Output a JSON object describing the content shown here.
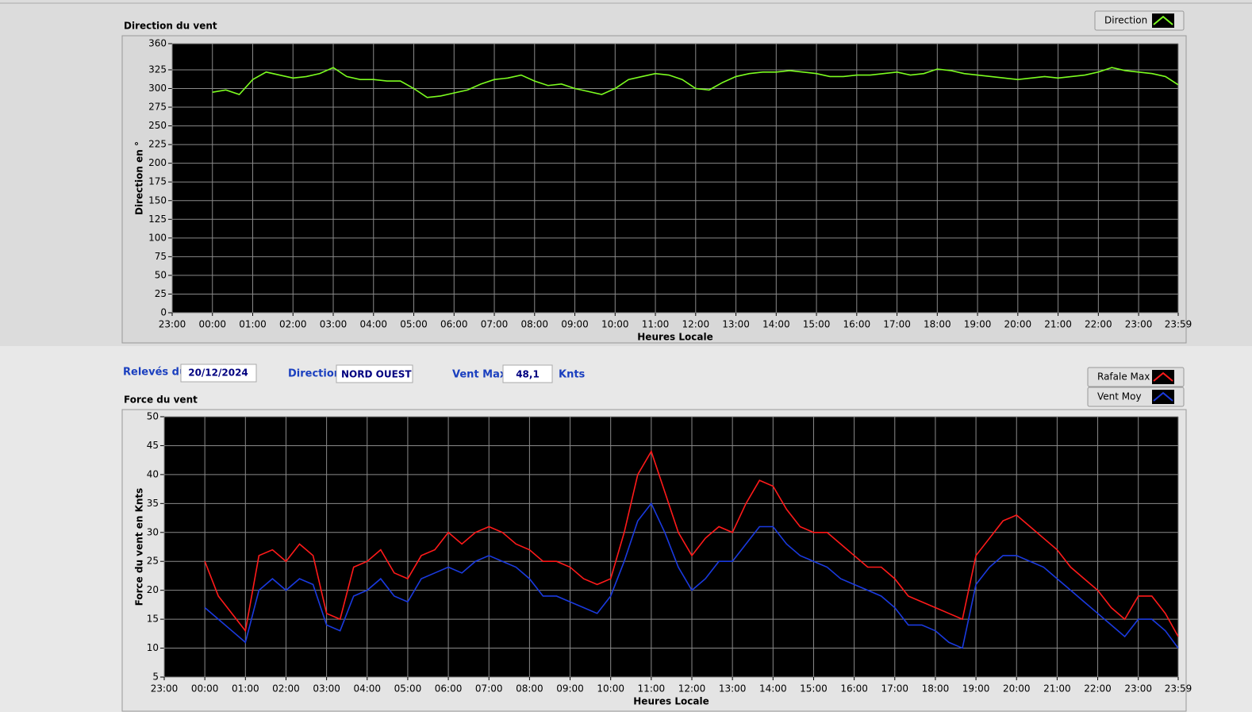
{
  "chart_data": [
    {
      "type": "line",
      "title": "Direction du vent",
      "xlabel": "Heures Locale",
      "ylabel": "Direction en °",
      "x": [
        0,
        20,
        40,
        60,
        80,
        100,
        120,
        140,
        160,
        180,
        200,
        220,
        240,
        260,
        280,
        300,
        320,
        340,
        360,
        380,
        400,
        420,
        440,
        460,
        480,
        500,
        520,
        540,
        560,
        580,
        600,
        620,
        640,
        660,
        680,
        700,
        720,
        740,
        760,
        780,
        800,
        820,
        840,
        860,
        880,
        900,
        920,
        940,
        960,
        980,
        1000,
        1020,
        1040,
        1060,
        1080,
        1100,
        1120,
        1140,
        1160,
        1180,
        1200,
        1220,
        1240,
        1260,
        1280,
        1300,
        1320,
        1340,
        1360,
        1380,
        1400,
        1420,
        1439
      ],
      "series": [
        {
          "name": "Direction",
          "color": "#7cfc20",
          "values": [
            295,
            298,
            292,
            312,
            322,
            318,
            314,
            316,
            320,
            328,
            316,
            312,
            312,
            310,
            310,
            300,
            288,
            290,
            294,
            298,
            306,
            312,
            314,
            318,
            310,
            304,
            306,
            300,
            296,
            292,
            300,
            312,
            316,
            320,
            318,
            312,
            300,
            298,
            308,
            316,
            320,
            322,
            322,
            324,
            322,
            320,
            316,
            316,
            318,
            318,
            320,
            322,
            318,
            320,
            326,
            324,
            320,
            318,
            316,
            314,
            312,
            314,
            316,
            314,
            316,
            318,
            322,
            328,
            324,
            322,
            320,
            316,
            305
          ]
        }
      ],
      "xlim": [
        -60,
        1439
      ],
      "xticks": [
        {
          "value": -60,
          "label": "23:00"
        },
        {
          "value": 0,
          "label": "00:00"
        },
        {
          "value": 60,
          "label": "01:00"
        },
        {
          "value": 120,
          "label": "02:00"
        },
        {
          "value": 180,
          "label": "03:00"
        },
        {
          "value": 240,
          "label": "04:00"
        },
        {
          "value": 300,
          "label": "05:00"
        },
        {
          "value": 360,
          "label": "06:00"
        },
        {
          "value": 420,
          "label": "07:00"
        },
        {
          "value": 480,
          "label": "08:00"
        },
        {
          "value": 540,
          "label": "09:00"
        },
        {
          "value": 600,
          "label": "10:00"
        },
        {
          "value": 660,
          "label": "11:00"
        },
        {
          "value": 720,
          "label": "12:00"
        },
        {
          "value": 780,
          "label": "13:00"
        },
        {
          "value": 840,
          "label": "14:00"
        },
        {
          "value": 900,
          "label": "15:00"
        },
        {
          "value": 960,
          "label": "16:00"
        },
        {
          "value": 1020,
          "label": "17:00"
        },
        {
          "value": 1080,
          "label": "18:00"
        },
        {
          "value": 1140,
          "label": "19:00"
        },
        {
          "value": 1200,
          "label": "20:00"
        },
        {
          "value": 1260,
          "label": "21:00"
        },
        {
          "value": 1320,
          "label": "22:00"
        },
        {
          "value": 1380,
          "label": "23:00"
        },
        {
          "value": 1439,
          "label": "23:59"
        }
      ],
      "ylim": [
        0,
        360
      ],
      "yticks": [
        0,
        25,
        50,
        75,
        100,
        125,
        150,
        175,
        200,
        225,
        250,
        275,
        300,
        325,
        360
      ],
      "grid": true
    },
    {
      "type": "line",
      "title": "Force du vent",
      "xlabel": "Heures Locale",
      "ylabel": "Force du vent en Knts",
      "x": [
        0,
        20,
        40,
        60,
        80,
        100,
        120,
        140,
        160,
        180,
        200,
        220,
        240,
        260,
        280,
        300,
        320,
        340,
        360,
        380,
        400,
        420,
        440,
        460,
        480,
        500,
        520,
        540,
        560,
        580,
        600,
        620,
        640,
        660,
        680,
        700,
        720,
        740,
        760,
        780,
        800,
        820,
        840,
        860,
        880,
        900,
        920,
        940,
        960,
        980,
        1000,
        1020,
        1040,
        1060,
        1080,
        1100,
        1120,
        1140,
        1160,
        1180,
        1200,
        1220,
        1240,
        1260,
        1280,
        1300,
        1320,
        1340,
        1360,
        1380,
        1400,
        1420,
        1439
      ],
      "series": [
        {
          "name": "Rafale Max",
          "color": "#ff1a1a",
          "values": [
            25,
            19,
            16,
            13,
            26,
            27,
            25,
            28,
            26,
            16,
            15,
            24,
            25,
            27,
            23,
            22,
            26,
            27,
            30,
            28,
            30,
            31,
            30,
            28,
            27,
            25,
            25,
            24,
            22,
            21,
            22,
            30,
            40,
            44,
            37,
            30,
            26,
            29,
            31,
            30,
            35,
            39,
            38,
            34,
            31,
            30,
            30,
            28,
            26,
            24,
            24,
            22,
            19,
            18,
            17,
            16,
            15,
            26,
            29,
            32,
            33,
            31,
            29,
            27,
            24,
            22,
            20,
            17,
            15,
            19,
            19,
            16,
            12
          ]
        },
        {
          "name": "Vent Moy",
          "color": "#1a3adf",
          "values": [
            17,
            15,
            13,
            11,
            20,
            22,
            20,
            22,
            21,
            14,
            13,
            19,
            20,
            22,
            19,
            18,
            22,
            23,
            24,
            23,
            25,
            26,
            25,
            24,
            22,
            19,
            19,
            18,
            17,
            16,
            19,
            25,
            32,
            35,
            30,
            24,
            20,
            22,
            25,
            25,
            28,
            31,
            31,
            28,
            26,
            25,
            24,
            22,
            21,
            20,
            19,
            17,
            14,
            14,
            13,
            11,
            10,
            21,
            24,
            26,
            26,
            25,
            24,
            22,
            20,
            18,
            16,
            14,
            12,
            15,
            15,
            13,
            10
          ]
        }
      ],
      "xlim": [
        -60,
        1439
      ],
      "xticks": [
        {
          "value": -60,
          "label": "23:00"
        },
        {
          "value": 0,
          "label": "00:00"
        },
        {
          "value": 60,
          "label": "01:00"
        },
        {
          "value": 120,
          "label": "02:00"
        },
        {
          "value": 180,
          "label": "03:00"
        },
        {
          "value": 240,
          "label": "04:00"
        },
        {
          "value": 300,
          "label": "05:00"
        },
        {
          "value": 360,
          "label": "06:00"
        },
        {
          "value": 420,
          "label": "07:00"
        },
        {
          "value": 480,
          "label": "08:00"
        },
        {
          "value": 540,
          "label": "09:00"
        },
        {
          "value": 600,
          "label": "10:00"
        },
        {
          "value": 660,
          "label": "11:00"
        },
        {
          "value": 720,
          "label": "12:00"
        },
        {
          "value": 780,
          "label": "13:00"
        },
        {
          "value": 840,
          "label": "14:00"
        },
        {
          "value": 900,
          "label": "15:00"
        },
        {
          "value": 960,
          "label": "16:00"
        },
        {
          "value": 1020,
          "label": "17:00"
        },
        {
          "value": 1080,
          "label": "18:00"
        },
        {
          "value": 1140,
          "label": "19:00"
        },
        {
          "value": 1200,
          "label": "20:00"
        },
        {
          "value": 1260,
          "label": "21:00"
        },
        {
          "value": 1320,
          "label": "22:00"
        },
        {
          "value": 1380,
          "label": "23:00"
        },
        {
          "value": 1439,
          "label": "23:59"
        }
      ],
      "ylim": [
        5,
        50
      ],
      "yticks": [
        5,
        10,
        15,
        20,
        25,
        30,
        35,
        40,
        45,
        50
      ],
      "grid": true
    }
  ],
  "form": {
    "date_label": "Relevés du",
    "date": "20/12/2024",
    "direction_label": "Direction",
    "direction": "NORD OUEST",
    "max_label": "Vent Max",
    "max": "48,1",
    "unit": "Knts"
  }
}
